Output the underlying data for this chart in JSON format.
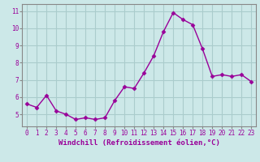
{
  "x": [
    0,
    1,
    2,
    3,
    4,
    5,
    6,
    7,
    8,
    9,
    10,
    11,
    12,
    13,
    14,
    15,
    16,
    17,
    18,
    19,
    20,
    21,
    22,
    23
  ],
  "y": [
    5.6,
    5.4,
    6.1,
    5.2,
    5.0,
    4.7,
    4.8,
    4.7,
    4.8,
    5.8,
    6.6,
    6.5,
    7.4,
    8.4,
    9.8,
    10.9,
    10.5,
    10.2,
    8.8,
    7.2,
    7.3,
    7.2,
    7.3,
    6.9
  ],
  "line_color": "#990099",
  "marker": "D",
  "markersize": 2.5,
  "linewidth": 1.0,
  "bg_color": "#cce8e8",
  "grid_color": "#aacccc",
  "ylabel_ticks": [
    5,
    6,
    7,
    8,
    9,
    10,
    11
  ],
  "xlim": [
    -0.5,
    23.5
  ],
  "ylim": [
    4.3,
    11.4
  ],
  "xticks": [
    0,
    1,
    2,
    3,
    4,
    5,
    6,
    7,
    8,
    9,
    10,
    11,
    12,
    13,
    14,
    15,
    16,
    17,
    18,
    19,
    20,
    21,
    22,
    23
  ],
  "tick_fontsize": 5.5,
  "xlabel_fontsize": 6.5,
  "xlabel": "Windchill (Refroidissement éolien,°C)",
  "axis_color": "#990099",
  "spine_color": "#888888"
}
